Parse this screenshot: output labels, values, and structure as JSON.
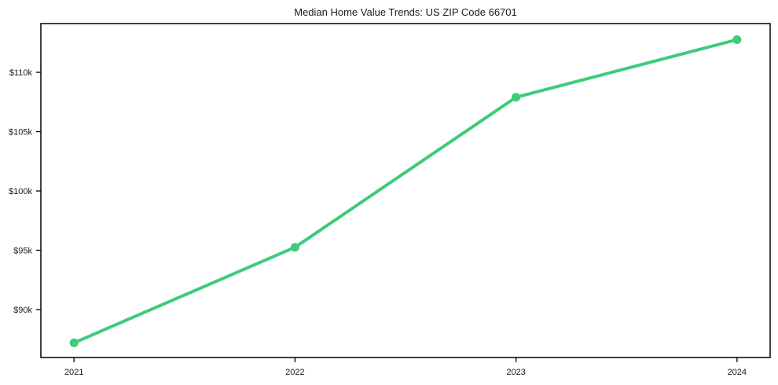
{
  "chart_data": {
    "type": "line",
    "title": "Median Home Value Trends: US ZIP Code 66701",
    "xlabel": "",
    "ylabel": "",
    "x": [
      2021,
      2022,
      2023,
      2024
    ],
    "x_tick_labels": [
      "2021",
      "2022",
      "2023",
      "2024"
    ],
    "series": [
      {
        "name": "Median Home Value",
        "values": [
          87200,
          95250,
          107900,
          112750
        ]
      }
    ],
    "y_tick_values": [
      90000,
      95000,
      100000,
      105000,
      110000
    ],
    "y_tick_labels": [
      "$90k",
      "$95k",
      "$100k",
      "$105k",
      "$110k"
    ],
    "xlim": [
      2020.85,
      2024.15
    ],
    "ylim": [
      85960,
      114110
    ],
    "grid": false,
    "legend_position": "none",
    "line_color": "#3ecb7a",
    "marker_color": "#3ecb7a",
    "axis_color": "#000000",
    "text_color": "#1a1a1a",
    "background_color": "#ffffff"
  }
}
